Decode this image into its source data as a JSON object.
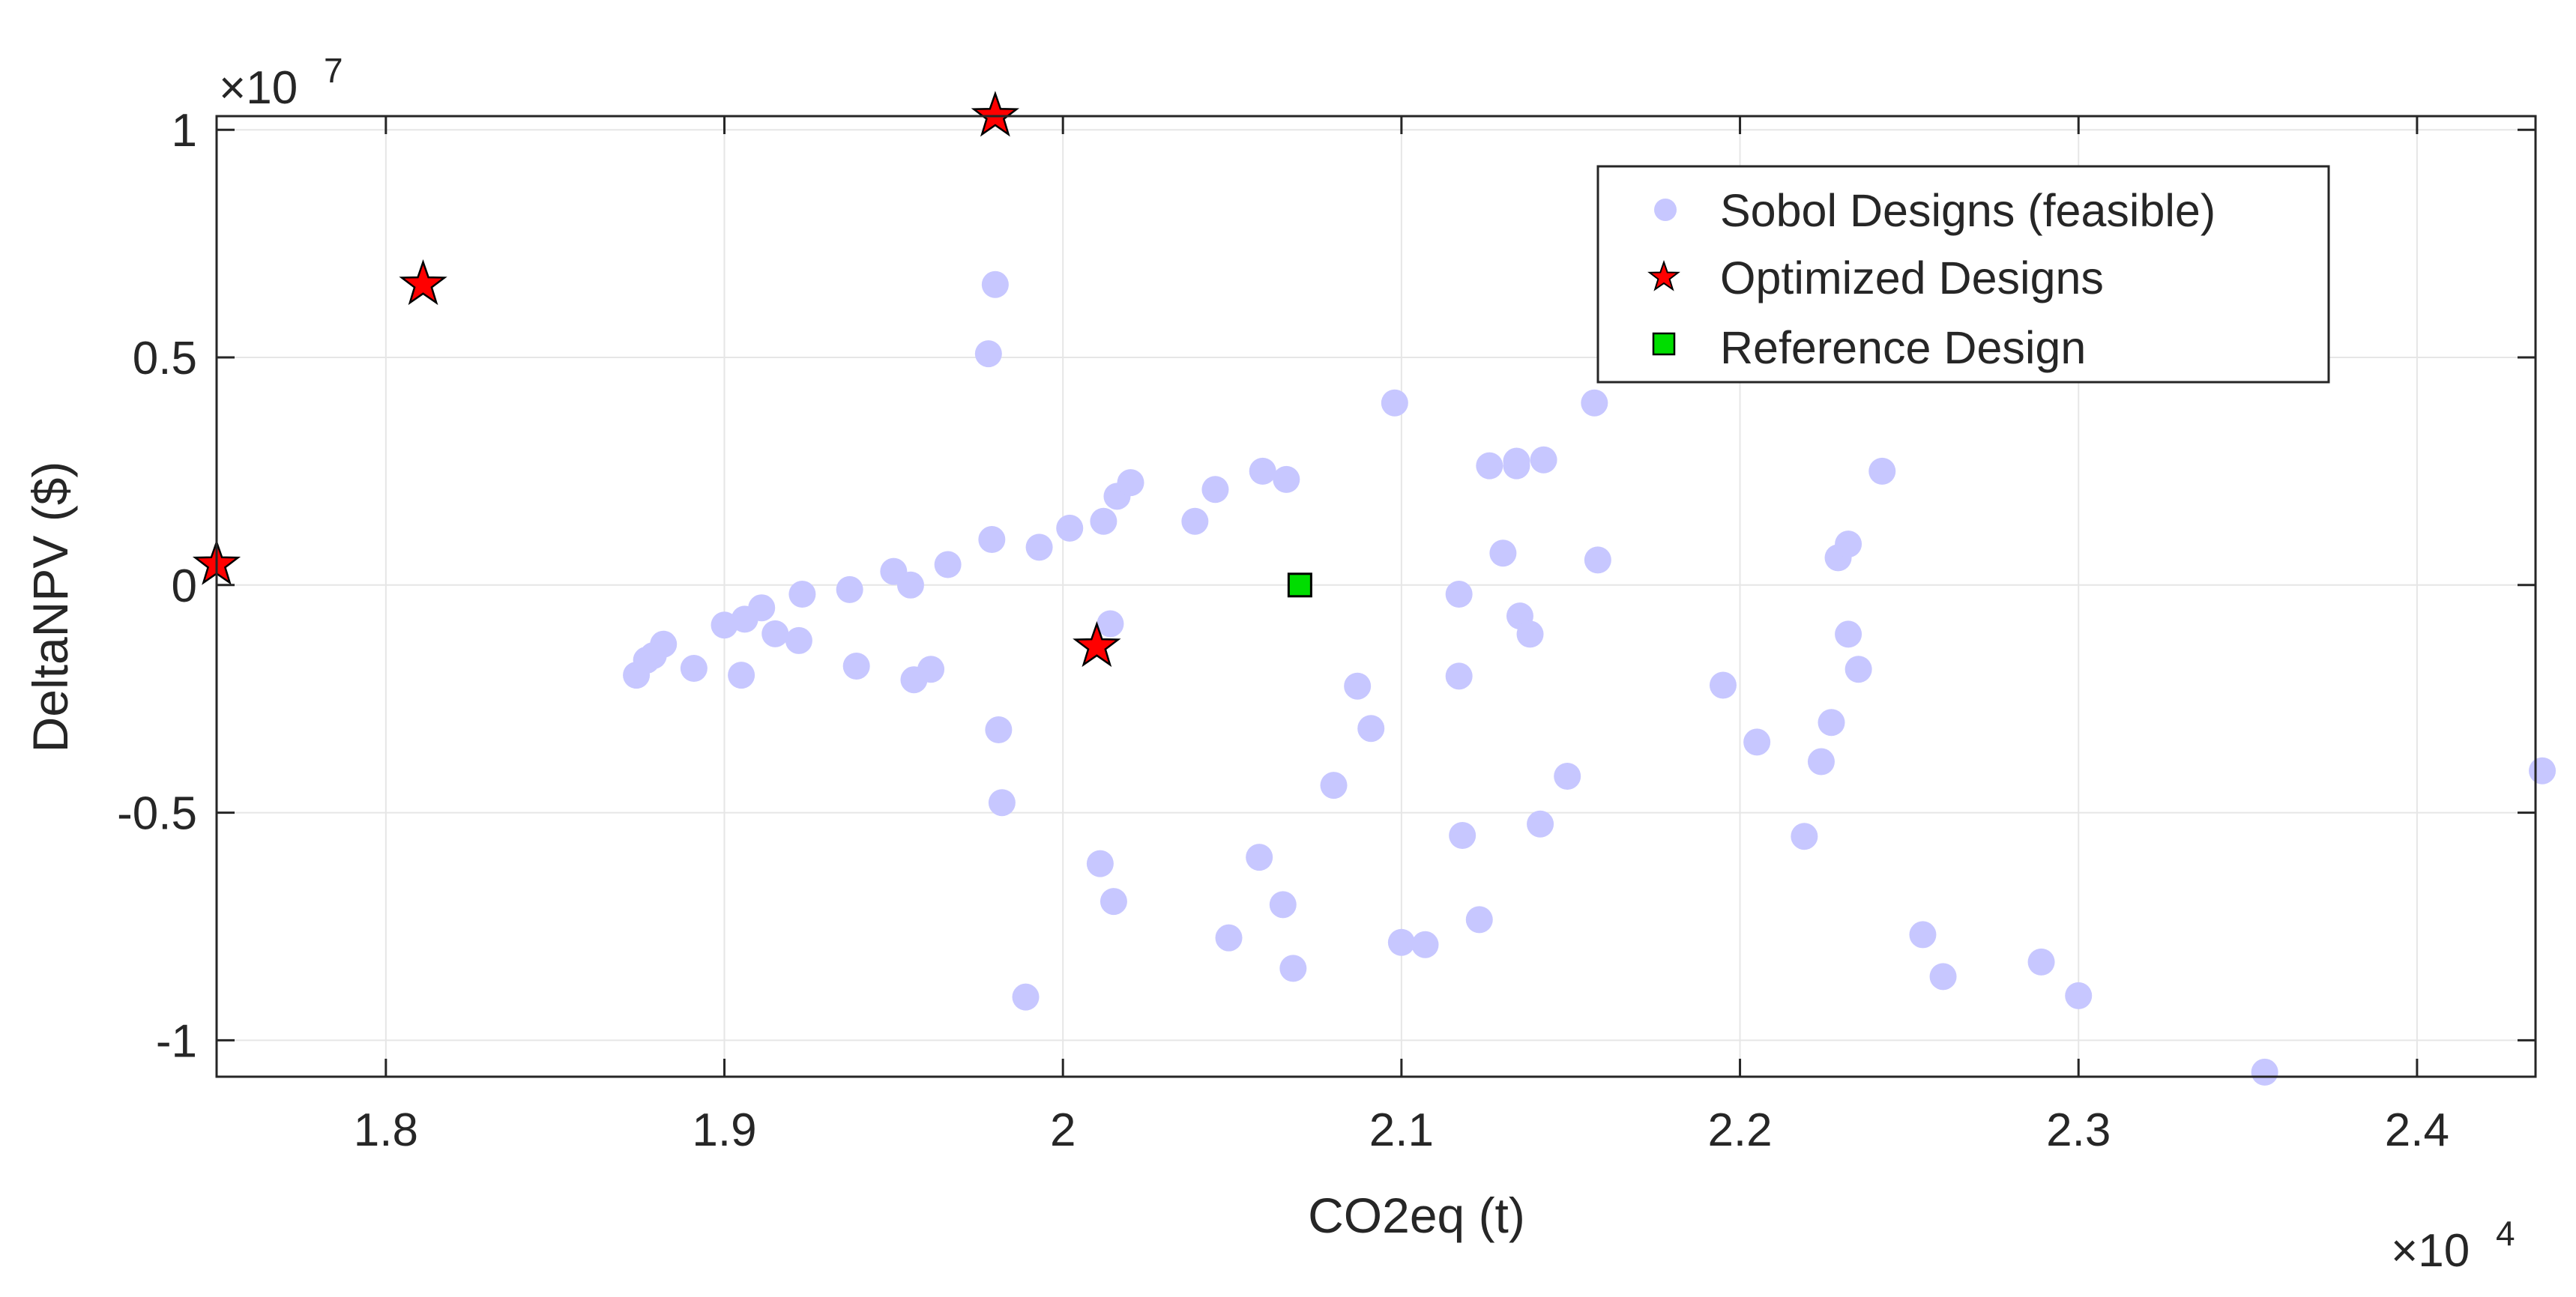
{
  "chart_data": {
    "type": "scatter",
    "title": "",
    "xlabel": "CO2eq (t)",
    "ylabel": "DeltaNPV ($)",
    "x_multiplier_label": "×10",
    "x_multiplier_exp": "4",
    "y_multiplier_label": "×10",
    "y_multiplier_exp": "7",
    "xlim": [
      1.75,
      2.435
    ],
    "ylim": [
      -1.08,
      1.03
    ],
    "xticks": [
      1.8,
      1.9,
      2.0,
      2.1,
      2.2,
      2.3,
      2.4
    ],
    "xtick_labels": [
      "1.8",
      "1.9",
      "2",
      "2.1",
      "2.2",
      "2.3",
      "2.4"
    ],
    "yticks": [
      -1,
      -0.5,
      0,
      0.5,
      1
    ],
    "ytick_labels": [
      "-1",
      "-0.5",
      "0",
      "0.5",
      "1"
    ],
    "grid": true,
    "legend_position": "top-right",
    "series": [
      {
        "name": "Sobol Designs (feasible)",
        "marker": "circle",
        "color": "#c7c7ff",
        "x": [
          1.874,
          1.877,
          1.879,
          1.882,
          1.891,
          1.9,
          1.905,
          1.906,
          1.911,
          1.915,
          1.922,
          1.923,
          1.937,
          1.939,
          1.95,
          1.955,
          1.956,
          1.961,
          1.966,
          1.978,
          1.979,
          1.98,
          1.981,
          1.982,
          1.989,
          1.993,
          2.002,
          2.011,
          2.012,
          2.014,
          2.015,
          2.016,
          2.02,
          2.039,
          2.045,
          2.049,
          2.058,
          2.059,
          2.065,
          2.066,
          2.068,
          2.08,
          2.087,
          2.091,
          2.098,
          2.1,
          2.107,
          2.117,
          2.117,
          2.118,
          2.123,
          2.126,
          2.13,
          2.134,
          2.134,
          2.135,
          2.138,
          2.141,
          2.142,
          2.149,
          2.157,
          2.158,
          2.195,
          2.205,
          2.219,
          2.224,
          2.227,
          2.229,
          2.232,
          2.232,
          2.235,
          2.242,
          2.254,
          2.26,
          2.289,
          2.3,
          2.355,
          2.437
        ],
        "y": [
          -0.198,
          -0.165,
          -0.155,
          -0.13,
          -0.183,
          -0.088,
          -0.198,
          -0.075,
          -0.05,
          -0.107,
          -0.122,
          -0.02,
          -0.01,
          -0.178,
          0.03,
          0.0,
          -0.208,
          -0.185,
          0.045,
          0.508,
          0.1,
          0.66,
          -0.318,
          -0.478,
          -0.905,
          0.083,
          0.125,
          -0.612,
          0.14,
          -0.085,
          -0.695,
          0.195,
          0.225,
          0.14,
          0.21,
          -0.775,
          -0.598,
          0.25,
          -0.702,
          0.232,
          -0.842,
          -0.44,
          -0.222,
          -0.315,
          0.4,
          -0.785,
          -0.79,
          -0.2,
          -0.02,
          -0.55,
          -0.735,
          0.262,
          0.07,
          0.262,
          0.272,
          -0.068,
          -0.108,
          -0.525,
          0.275,
          -0.42,
          0.4,
          0.055,
          -0.22,
          -0.345,
          -0.552,
          -0.388,
          -0.302,
          0.06,
          0.09,
          -0.108,
          -0.185,
          0.25,
          -0.768,
          -0.86,
          -0.828,
          -0.902,
          -1.07,
          -0.408
        ]
      },
      {
        "name": "Optimized Designs",
        "marker": "star",
        "color": "#ff0000",
        "x": [
          1.75,
          1.811,
          1.98,
          2.01
        ],
        "y": [
          0.045,
          0.66,
          1.03,
          -0.135
        ]
      },
      {
        "name": "Reference Design",
        "marker": "square",
        "color": "#00dd00",
        "x": [
          2.07
        ],
        "y": [
          0.0
        ]
      }
    ]
  }
}
